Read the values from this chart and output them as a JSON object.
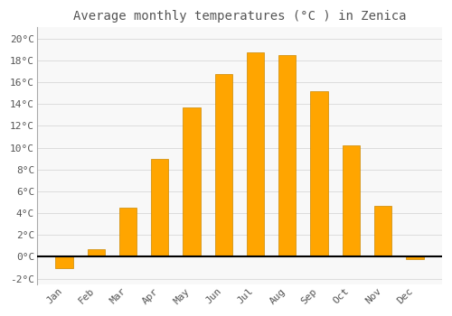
{
  "title": "Average monthly temperatures (°C ) in Zenica",
  "months": [
    "Jan",
    "Feb",
    "Mar",
    "Apr",
    "May",
    "Jun",
    "Jul",
    "Aug",
    "Sep",
    "Oct",
    "Nov",
    "Dec"
  ],
  "values": [
    -1.0,
    0.7,
    4.5,
    9.0,
    13.7,
    16.7,
    18.7,
    18.5,
    15.2,
    10.2,
    4.7,
    -0.2
  ],
  "bar_color": "#FFA500",
  "bar_edge_color": "#CC8800",
  "ylim": [
    -2.5,
    21
  ],
  "yticks": [
    -2,
    0,
    2,
    4,
    6,
    8,
    10,
    12,
    14,
    16,
    18,
    20
  ],
  "background_color": "#FFFFFF",
  "plot_bg_color": "#F8F8F8",
  "grid_color": "#DDDDDD",
  "font_color": "#555555",
  "title_fontsize": 10,
  "tick_fontsize": 8,
  "bar_width": 0.55
}
